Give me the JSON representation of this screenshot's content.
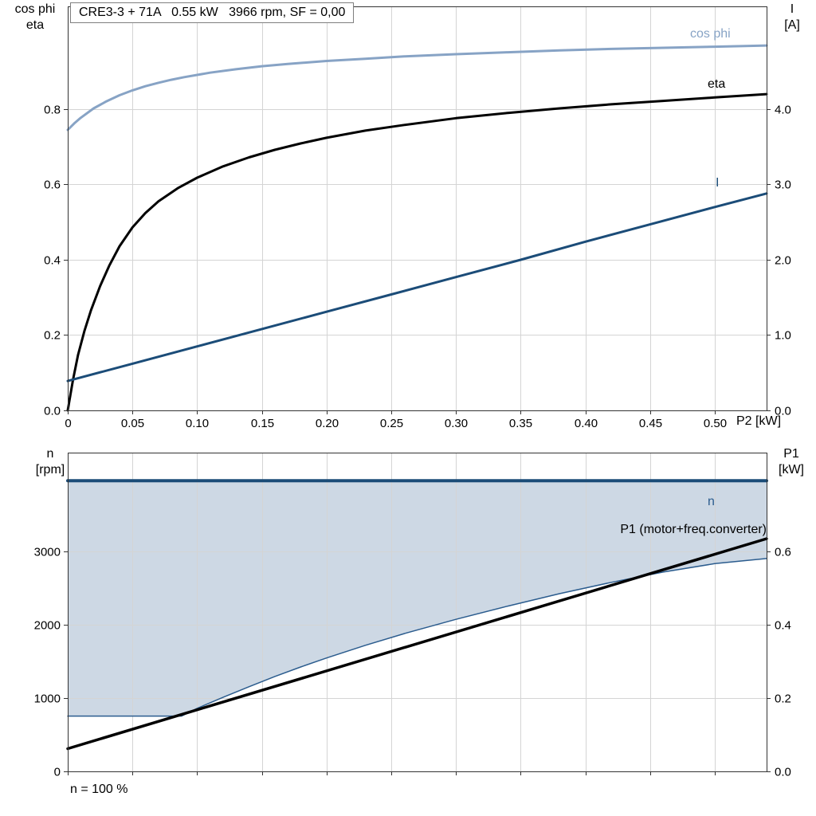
{
  "chart_data": [
    {
      "name": "motor-performance-chart",
      "type": "line",
      "title": "CRE3-3 + 71A   0.55 kW   3966 rpm, SF = 0,00",
      "grid": true,
      "grid_color": "#d4d4d4",
      "frame_color": "#333333",
      "x_axis": {
        "label": "P2 [kW]",
        "min": 0,
        "max": 0.54,
        "ticks": [
          0,
          0.05,
          0.1,
          0.15,
          0.2,
          0.25,
          0.3,
          0.35,
          0.4,
          0.45,
          0.5
        ],
        "tick_labels": [
          "0",
          "0.05",
          "0.10",
          "0.15",
          "0.20",
          "0.25",
          "0.30",
          "0.35",
          "0.40",
          "0.45",
          "0.50"
        ]
      },
      "y_left": {
        "label": [
          "cos phi",
          "eta"
        ],
        "min": 0,
        "max": 1.073,
        "ticks": [
          0,
          0.2,
          0.4,
          0.6,
          0.8
        ],
        "tick_labels": [
          "0.0",
          "0.2",
          "0.4",
          "0.6",
          "0.8"
        ]
      },
      "y_right": {
        "label": [
          "I",
          "[A]"
        ],
        "min": 0,
        "max": 5.365,
        "ticks": [
          0,
          1,
          2,
          3,
          4
        ],
        "tick_labels": [
          "0.0",
          "1.0",
          "2.0",
          "3.0",
          "4.0"
        ]
      },
      "series": [
        {
          "id": "cos-phi",
          "name": "cos phi",
          "axis": "left",
          "color": "#87a3c5",
          "width": 3,
          "points": [
            [
              0,
              0.745
            ],
            [
              0.005,
              0.762
            ],
            [
              0.01,
              0.777
            ],
            [
              0.02,
              0.802
            ],
            [
              0.03,
              0.821
            ],
            [
              0.04,
              0.837
            ],
            [
              0.05,
              0.85
            ],
            [
              0.06,
              0.861
            ],
            [
              0.07,
              0.87
            ],
            [
              0.08,
              0.878
            ],
            [
              0.09,
              0.885
            ],
            [
              0.11,
              0.897
            ],
            [
              0.13,
              0.906
            ],
            [
              0.15,
              0.914
            ],
            [
              0.17,
              0.92
            ],
            [
              0.2,
              0.928
            ],
            [
              0.23,
              0.934
            ],
            [
              0.26,
              0.94
            ],
            [
              0.3,
              0.946
            ],
            [
              0.34,
              0.951
            ],
            [
              0.38,
              0.956
            ],
            [
              0.42,
              0.96
            ],
            [
              0.46,
              0.963
            ],
            [
              0.5,
              0.966
            ],
            [
              0.54,
              0.969
            ]
          ]
        },
        {
          "id": "eta",
          "name": "eta",
          "axis": "left",
          "color": "#000000",
          "width": 3,
          "points": [
            [
              0,
              0
            ],
            [
              0.004,
              0.08
            ],
            [
              0.008,
              0.148
            ],
            [
              0.013,
              0.212
            ],
            [
              0.018,
              0.266
            ],
            [
              0.025,
              0.33
            ],
            [
              0.032,
              0.384
            ],
            [
              0.04,
              0.436
            ],
            [
              0.05,
              0.486
            ],
            [
              0.06,
              0.524
            ],
            [
              0.07,
              0.555
            ],
            [
              0.085,
              0.59
            ],
            [
              0.1,
              0.618
            ],
            [
              0.12,
              0.648
            ],
            [
              0.14,
              0.672
            ],
            [
              0.16,
              0.692
            ],
            [
              0.18,
              0.709
            ],
            [
              0.2,
              0.724
            ],
            [
              0.23,
              0.743
            ],
            [
              0.26,
              0.758
            ],
            [
              0.3,
              0.776
            ],
            [
              0.34,
              0.79
            ],
            [
              0.38,
              0.802
            ],
            [
              0.42,
              0.813
            ],
            [
              0.46,
              0.822
            ],
            [
              0.5,
              0.831
            ],
            [
              0.54,
              0.84
            ]
          ]
        },
        {
          "id": "current",
          "name": "I",
          "axis": "right",
          "color": "#1b4c78",
          "width": 3,
          "points": [
            [
              0,
              0.39
            ],
            [
              0.05,
              0.62
            ],
            [
              0.1,
              0.85
            ],
            [
              0.15,
              1.08
            ],
            [
              0.2,
              1.31
            ],
            [
              0.25,
              1.54
            ],
            [
              0.3,
              1.77
            ],
            [
              0.35,
              2.0
            ],
            [
              0.4,
              2.24
            ],
            [
              0.45,
              2.47
            ],
            [
              0.5,
              2.7
            ],
            [
              0.54,
              2.88
            ]
          ]
        }
      ],
      "annotations": [
        {
          "id": "cos-phi",
          "text": "cos phi",
          "x": 866,
          "y": 47,
          "color": "#87a3c5",
          "anchor": "start"
        },
        {
          "id": "eta",
          "text": "eta",
          "x": 888,
          "y": 110,
          "color": "#000000",
          "anchor": "start"
        },
        {
          "id": "current",
          "text": "I",
          "x": 898,
          "y": 234,
          "color": "#1b4c78",
          "anchor": "start"
        }
      ]
    },
    {
      "name": "speed-power-chart",
      "type": "line",
      "title": "",
      "grid": true,
      "grid_color": "#d4d4d4",
      "frame_color": "#333333",
      "x_axis": {
        "label": "",
        "min": 0,
        "max": 0.54,
        "ticks": [
          0,
          0.05,
          0.1,
          0.15,
          0.2,
          0.25,
          0.3,
          0.35,
          0.4,
          0.45,
          0.5
        ],
        "tick_labels": []
      },
      "y_left": {
        "label": [
          "n",
          "[rpm]"
        ],
        "min": 0,
        "max": 4350,
        "ticks": [
          0,
          1000,
          2000,
          3000
        ],
        "tick_labels": [
          "0",
          "1000",
          "2000",
          "3000"
        ]
      },
      "y_right": {
        "label": [
          "P1",
          "[kW]"
        ],
        "min": 0,
        "max": 0.87,
        "ticks": [
          0,
          0.2,
          0.4,
          0.6
        ],
        "tick_labels": [
          "0.0",
          "0.2",
          "0.4",
          "0.6"
        ]
      },
      "fill_between": {
        "upper": "n",
        "lower": "n min",
        "color": "#cdd8e4"
      },
      "series": [
        {
          "id": "n-min",
          "name": "n min",
          "axis": "left",
          "color": "#2b5c8e",
          "width": 1.5,
          "points": [
            [
              0,
              755
            ],
            [
              0.088,
              755
            ],
            [
              0.1,
              860
            ],
            [
              0.12,
              1010
            ],
            [
              0.14,
              1155
            ],
            [
              0.16,
              1295
            ],
            [
              0.18,
              1425
            ],
            [
              0.2,
              1548
            ],
            [
              0.23,
              1720
            ],
            [
              0.26,
              1880
            ],
            [
              0.3,
              2075
            ],
            [
              0.34,
              2255
            ],
            [
              0.38,
              2425
            ],
            [
              0.42,
              2580
            ],
            [
              0.46,
              2720
            ],
            [
              0.5,
              2835
            ],
            [
              0.54,
              2905
            ]
          ]
        },
        {
          "id": "n",
          "name": "n",
          "axis": "left",
          "color": "#1b4c78",
          "width": 4,
          "points": [
            [
              0,
              3966
            ],
            [
              0.54,
              3966
            ]
          ]
        },
        {
          "id": "p1",
          "name": "P1 (motor+freq.converter)",
          "axis": "right",
          "color": "#000000",
          "width": 3.5,
          "points": [
            [
              0,
              0.062
            ],
            [
              0.54,
              0.635
            ]
          ]
        }
      ],
      "annotations": [
        {
          "id": "n",
          "text": "n",
          "x": 888,
          "y": 634,
          "color": "#2b5c8e",
          "anchor": "start"
        },
        {
          "id": "p1",
          "text": "P1 (motor+freq.converter)",
          "x": 962,
          "y": 669,
          "color": "#000000",
          "anchor": "end"
        }
      ],
      "footnote": "n = 100 %"
    }
  ]
}
